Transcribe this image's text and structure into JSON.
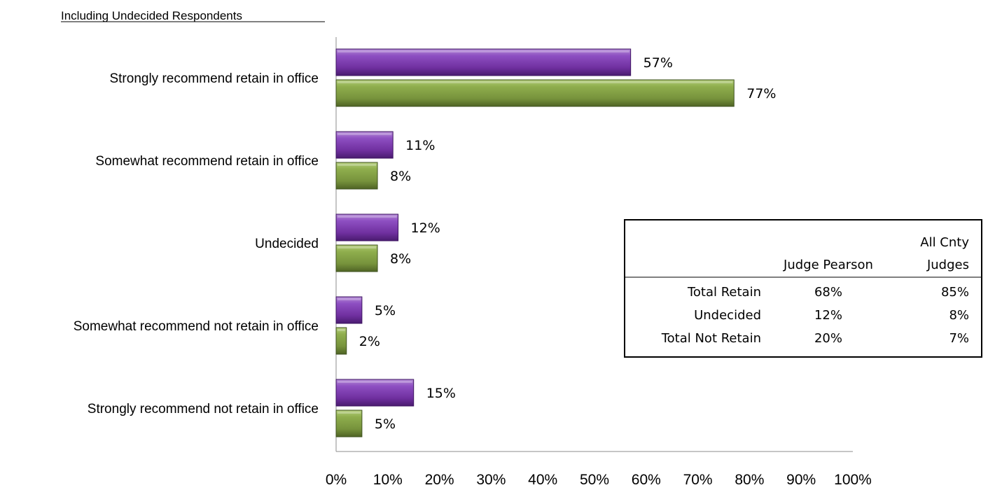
{
  "subtitle": "Including Undecided Respondents",
  "chart_data": {
    "type": "bar",
    "orientation": "horizontal",
    "categories": [
      "Strongly recommend retain in office",
      "Somewhat recommend retain in office",
      "Undecided",
      "Somewhat recommend not retain in office",
      "Strongly recommend not retain in office"
    ],
    "series": [
      {
        "values": [
          57,
          11,
          12,
          5,
          15
        ],
        "color": "#7030A0"
      },
      {
        "values": [
          77,
          8,
          8,
          2,
          5
        ],
        "color": "#77933C"
      }
    ],
    "data_labels": [
      [
        "57%",
        "11%",
        "12%",
        "5%",
        "15%"
      ],
      [
        "77%",
        "8%",
        "8%",
        "2%",
        "5%"
      ]
    ],
    "xlim": [
      0,
      100
    ],
    "x_ticks": [
      "0%",
      "10%",
      "20%",
      "30%",
      "40%",
      "50%",
      "60%",
      "70%",
      "80%",
      "90%",
      "100%"
    ],
    "grid": false,
    "legend": "none"
  },
  "summary_table": {
    "headers": [
      "",
      "Judge Pearson",
      "All Cnty Judges"
    ],
    "header_lines": [
      [
        "Judge Pearson"
      ],
      [
        "All Cnty",
        "Judges"
      ]
    ],
    "rows": [
      {
        "label": "Total Retain",
        "values": [
          "68%",
          "85%"
        ]
      },
      {
        "label": "Undecided",
        "values": [
          "12%",
          "8%"
        ]
      },
      {
        "label": "Total Not Retain",
        "values": [
          "20%",
          "7%"
        ]
      }
    ]
  }
}
